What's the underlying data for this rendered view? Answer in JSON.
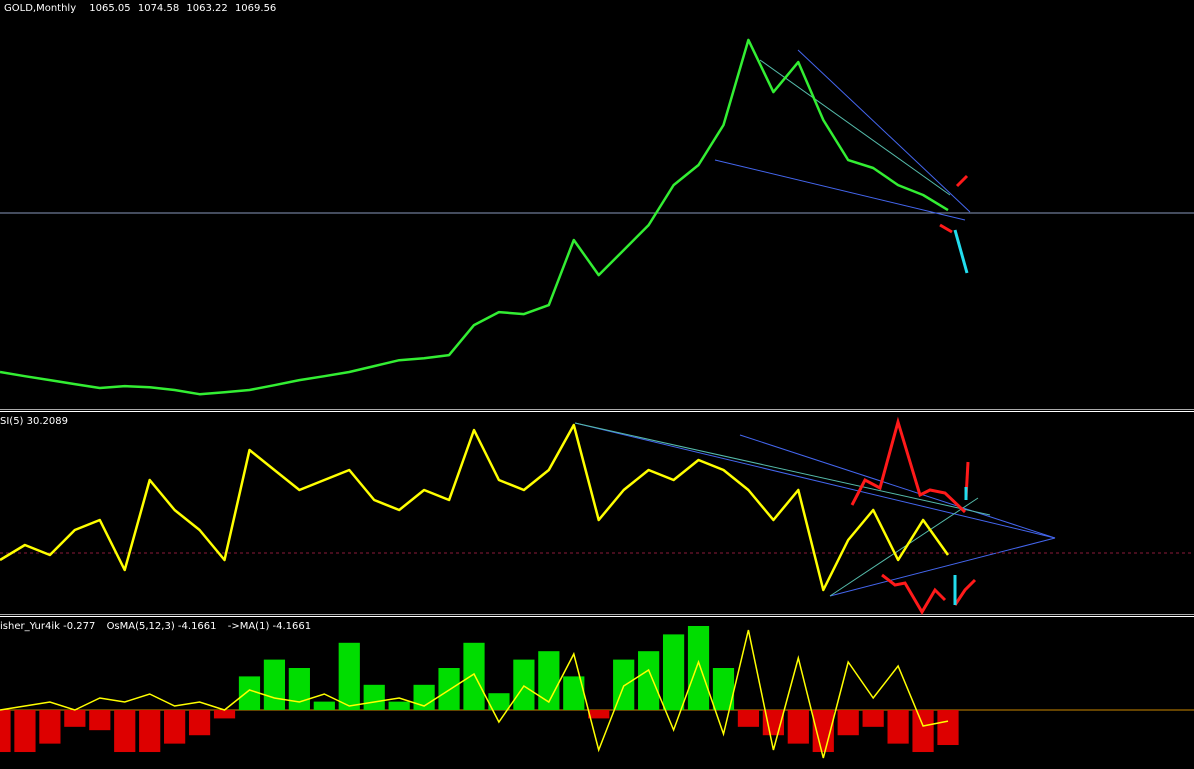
{
  "chart_data": [
    {
      "type": "line",
      "title": "GOLD,Monthly",
      "quote": [
        1065.05,
        1074.58,
        1063.22,
        1069.56
      ],
      "color": "#33ee33",
      "ylim": [
        180,
        2040
      ],
      "values": [
        344,
        325,
        307,
        289,
        271,
        280,
        275,
        262,
        243,
        252,
        262,
        284,
        307,
        325,
        344,
        371,
        398,
        407,
        421,
        558,
        617,
        608,
        649,
        946,
        786,
        900,
        1014,
        1196,
        1288,
        1470,
        1858,
        1620,
        1757,
        1493,
        1310,
        1274,
        1196,
        1151,
        1082
      ]
    },
    {
      "type": "line",
      "title": "SI(5)",
      "current": 30.2089,
      "color": "#ffff00",
      "ylim": [
        0,
        100
      ],
      "levels": [
        30
      ],
      "values": [
        26.5,
        34,
        29,
        41.5,
        46.5,
        21.5,
        66.5,
        51.5,
        41.5,
        26.5,
        81.5,
        71.5,
        61.5,
        66.5,
        71.5,
        56.5,
        51.5,
        61.5,
        56.5,
        91.5,
        66.5,
        61.5,
        71.5,
        94,
        46.5,
        61.5,
        71.5,
        66.5,
        76.5,
        71.5,
        61.5,
        46.5,
        61.5,
        11.5,
        36.5,
        51.5,
        26.5,
        46.5,
        29
      ]
    },
    {
      "type": "histogram_line",
      "ylim": [
        -7.02,
        11.07
      ],
      "y2lim": [
        -1.475,
        2.325
      ],
      "ma_label": "->MA(1)",
      "ma_value": -4.1661,
      "series": [
        {
          "name": "OsMA(5,12,3)",
          "current": -4.1661,
          "color": "#00dd00",
          "negative_color": "#dd0000",
          "values": [
            -5,
            -5,
            -4,
            -2,
            -2.4,
            -5,
            -5,
            -4,
            -3,
            -1,
            4,
            6,
            5,
            1,
            8,
            3,
            1,
            3,
            5,
            8,
            2,
            6,
            7,
            4,
            -1,
            6,
            7,
            9,
            10,
            5,
            -2,
            -3,
            -4,
            -5,
            -3,
            -2,
            -4,
            -5,
            -4.1661
          ]
        },
        {
          "name": "isher_Yur4ik",
          "current": -0.277,
          "color": "#ffff00",
          "axis": "y2",
          "values": [
            0,
            0.1,
            0.2,
            0,
            0.3,
            0.2,
            0.4,
            0.1,
            0.2,
            0,
            0.5,
            0.3,
            0.2,
            0.4,
            0.1,
            0.2,
            0.3,
            0.1,
            0.5,
            0.9,
            -0.3,
            0.6,
            0.2,
            1.4,
            -1.0,
            0.6,
            1.0,
            -0.5,
            1.2,
            -0.6,
            2.0,
            -1.0,
            1.3,
            -1.2,
            1.2,
            0.3,
            1.1,
            -0.4,
            -0.277
          ]
        }
      ]
    }
  ]
}
